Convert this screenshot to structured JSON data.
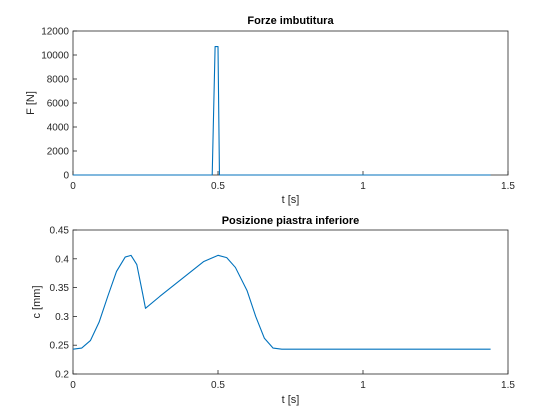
{
  "chart_data": [
    {
      "type": "line",
      "title": "Forze imbutitura",
      "xlabel": "t [s]",
      "ylabel": "F [N]",
      "xlim": [
        0,
        1.5
      ],
      "ylim": [
        0,
        12000
      ],
      "xticks": [
        0,
        0.5,
        1,
        1.5
      ],
      "xtick_labels": [
        "0",
        "0.5",
        "1",
        "1.5"
      ],
      "yticks": [
        0,
        2000,
        4000,
        6000,
        8000,
        10000,
        12000
      ],
      "ytick_labels": [
        "0",
        "2000",
        "4000",
        "6000",
        "8000",
        "10000",
        "12000"
      ],
      "grid": false,
      "color": "#0072BD",
      "series": [
        {
          "x": [
            0,
            0.475,
            0.48,
            0.49,
            0.5,
            0.505,
            0.51,
            1.44
          ],
          "y": [
            0,
            0,
            0,
            10700,
            10700,
            0,
            0,
            0
          ]
        }
      ]
    },
    {
      "type": "line",
      "title": "Posizione piastra inferiore",
      "xlabel": "t [s]",
      "ylabel": "c [mm]",
      "xlim": [
        0,
        1.5
      ],
      "ylim": [
        0.2,
        0.45
      ],
      "xticks": [
        0,
        0.5,
        1,
        1.5
      ],
      "xtick_labels": [
        "0",
        "0.5",
        "1",
        "1.5"
      ],
      "yticks": [
        0.2,
        0.25,
        0.3,
        0.35,
        0.4,
        0.45
      ],
      "ytick_labels": [
        "0.2",
        "0.25",
        "0.3",
        "0.35",
        "0.4",
        "0.45"
      ],
      "grid": false,
      "color": "#0072BD",
      "series": [
        {
          "x": [
            0,
            0.03,
            0.06,
            0.09,
            0.12,
            0.15,
            0.18,
            0.2,
            0.22,
            0.24,
            0.25,
            0.3,
            0.35,
            0.4,
            0.45,
            0.5,
            0.53,
            0.56,
            0.6,
            0.63,
            0.66,
            0.69,
            0.72,
            1.44
          ],
          "y": [
            0.243,
            0.245,
            0.258,
            0.29,
            0.335,
            0.378,
            0.403,
            0.406,
            0.39,
            0.34,
            0.314,
            0.335,
            0.355,
            0.375,
            0.395,
            0.406,
            0.402,
            0.385,
            0.345,
            0.3,
            0.262,
            0.245,
            0.243,
            0.243
          ]
        }
      ]
    }
  ]
}
